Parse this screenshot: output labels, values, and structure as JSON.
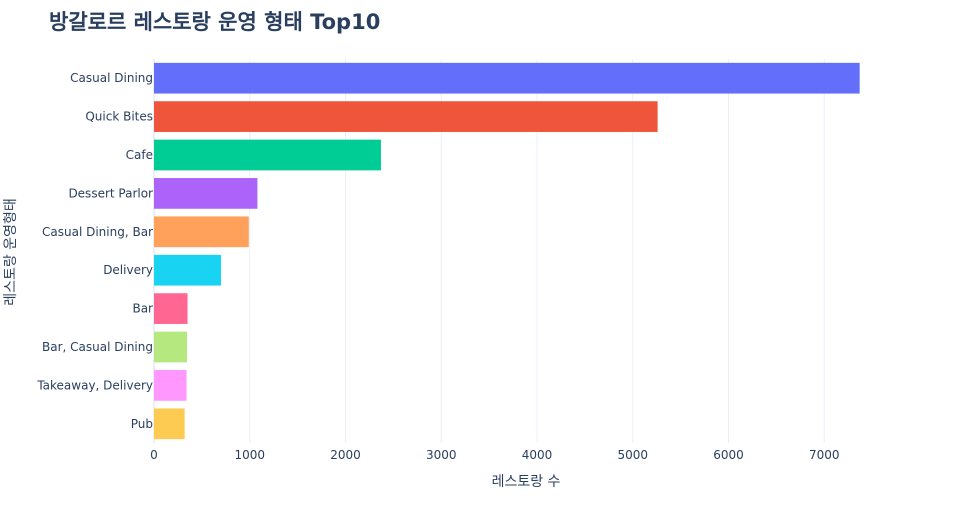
{
  "chart_data": {
    "type": "bar",
    "orientation": "horizontal",
    "title": "방갈로르 레스토랑 운영 형태 Top10",
    "xlabel": "레스토랑 수",
    "ylabel": "레스토랑 운영형태",
    "categories": [
      "Casual Dining",
      "Quick Bites",
      "Cafe",
      "Dessert Parlor",
      "Casual Dining, Bar",
      "Delivery",
      "Bar",
      "Bar, Casual Dining",
      "Takeaway, Delivery",
      "Pub"
    ],
    "values": [
      7370,
      5260,
      2370,
      1080,
      990,
      700,
      350,
      345,
      340,
      320
    ],
    "colors": [
      "#636efa",
      "#ef553b",
      "#00cc96",
      "#ab63fa",
      "#ffa15a",
      "#19d3f3",
      "#ff6692",
      "#b6e880",
      "#ff97ff",
      "#fecb52"
    ],
    "xlim": [
      0,
      7760
    ],
    "xticks": [
      0,
      1000,
      2000,
      3000,
      4000,
      5000,
      6000,
      7000
    ],
    "xtick_labels": [
      "0",
      "1000",
      "2000",
      "3000",
      "4000",
      "5000",
      "6000",
      "7000"
    ],
    "grid": true
  }
}
